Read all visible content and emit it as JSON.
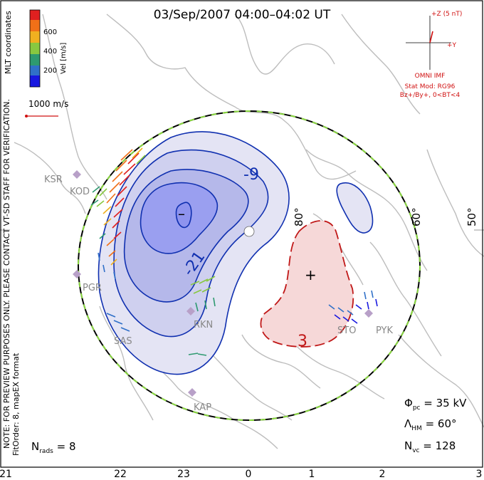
{
  "title": "03/Sep/2007 04:00–04:02 UT",
  "colorbar": {
    "unit_label": "Vel [m/s]",
    "ticks": [
      "600",
      "400",
      "200"
    ],
    "colors": [
      "#e02020",
      "#f07018",
      "#f0b020",
      "#88c840",
      "#2e9a70",
      "#3070c8",
      "#1818e0"
    ]
  },
  "coord_label": "MLT coordinates",
  "velocity_ref": "1000 m/s",
  "side_note_1": "NOTE: FOR PREVIEW PURPOSES ONLY. PLEASE CONTACT VT-SD STAFF FOR VERIFICATION.",
  "side_note_2": "FitOrder: 8, mapEX format",
  "imf": {
    "bz_label": "+Z (5 nT)",
    "by_label": "+Y",
    "source": "OMNI IMF",
    "stat_mod": "Stat Mod: RG96",
    "condition": "Bz+/By+, 0<BT<4",
    "color": "#d01010"
  },
  "contours": {
    "neg_labels": [
      "-9",
      "-21",
      "–"
    ],
    "pos_labels": [
      "3",
      "+"
    ],
    "neg_color": "#1030b0",
    "pos_color": "#c01818"
  },
  "lat_labels": [
    "80°",
    "60°",
    "50°"
  ],
  "stations": [
    "KSR",
    "KOD",
    "PGR",
    "SAS",
    "RKN",
    "KAP",
    "STO",
    "PYK"
  ],
  "stats": {
    "phi_pc": "35 kV",
    "lambda_hm": "60°",
    "n_vc": "128",
    "n_rads": "8"
  },
  "mlt_ticks": [
    "21",
    "22",
    "23",
    "0",
    "1",
    "2",
    "3"
  ]
}
